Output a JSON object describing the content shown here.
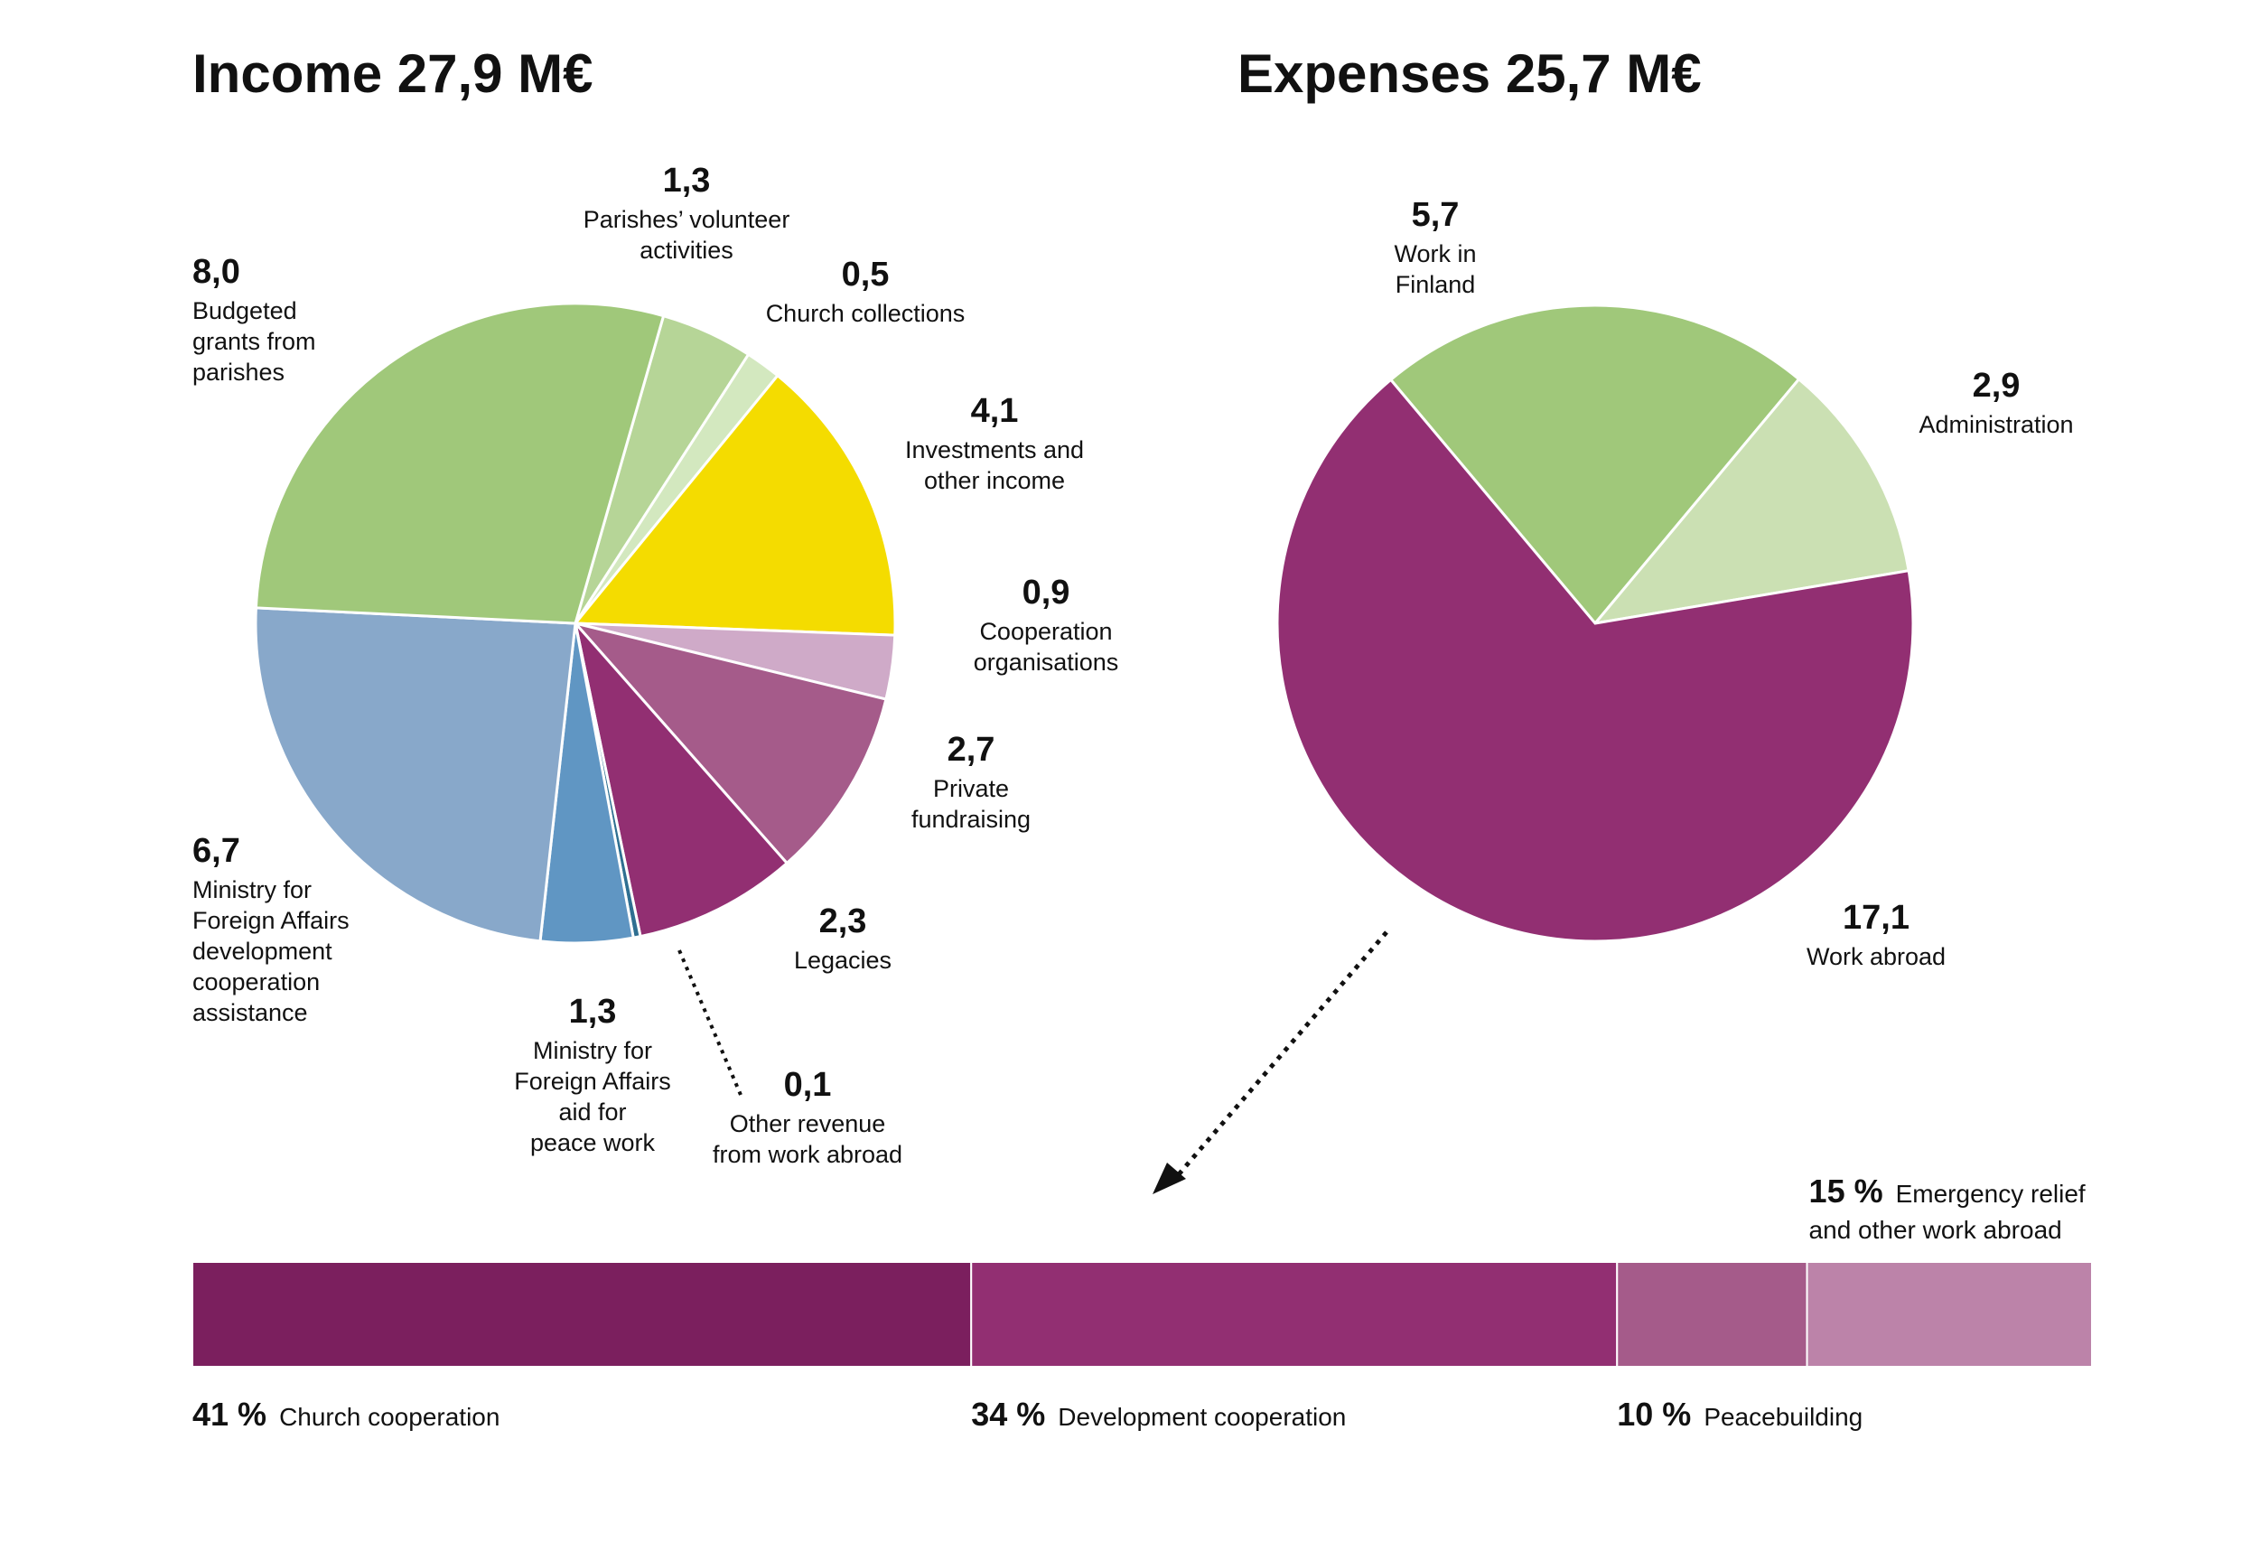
{
  "chart_data": [
    {
      "type": "pie",
      "title": "Income 27,9 M€",
      "start_angle_deg": -74,
      "slices": [
        {
          "value": "1,3",
          "label": [
            "Parishes’ volunteer",
            "activities"
          ],
          "v": 1.3,
          "color": "#b6d597"
        },
        {
          "value": "0,5",
          "label": [
            "Church collections"
          ],
          "v": 0.5,
          "color": "#d3e8bf"
        },
        {
          "value": "4,1",
          "label": [
            "Investments and",
            "other income"
          ],
          "v": 4.1,
          "color": "#f4dc00"
        },
        {
          "value": "0,9",
          "label": [
            "Cooperation",
            "organisations"
          ],
          "v": 0.9,
          "color": "#cfaac8"
        },
        {
          "value": "2,7",
          "label": [
            "Private",
            "fundraising"
          ],
          "v": 2.7,
          "color": "#a55b8a"
        },
        {
          "value": "2,3",
          "label": [
            "Legacies"
          ],
          "v": 2.3,
          "color": "#922f72"
        },
        {
          "value": "0,1",
          "label": [
            "Other revenue",
            "from work abroad"
          ],
          "v": 0.1,
          "color": "#2f6f91"
        },
        {
          "value": "1,3",
          "label": [
            "Ministry for",
            "Foreign Affairs",
            "aid for",
            "peace work"
          ],
          "v": 1.3,
          "color": "#6096c3"
        },
        {
          "value": "6,7",
          "label": [
            "Ministry for",
            "Foreign Affairs",
            "development",
            "cooperation",
            "assistance"
          ],
          "v": 6.7,
          "color": "#88a8ca"
        },
        {
          "value": "8,0",
          "label": [
            "Budgeted",
            "grants from",
            "parishes"
          ],
          "v": 8.0,
          "color": "#a0c87a"
        }
      ]
    },
    {
      "type": "pie",
      "title": "Expenses 25,7 M€",
      "start_angle_deg": -130,
      "slices": [
        {
          "value": "5,7",
          "label": [
            "Work in",
            "Finland"
          ],
          "v": 5.7,
          "color": "#a0c87a"
        },
        {
          "value": "2,9",
          "label": [
            "Administration"
          ],
          "v": 2.9,
          "color": "#cbe0b3"
        },
        {
          "value": "17,1",
          "label": [
            "Work abroad"
          ],
          "v": 17.1,
          "color": "#922f72"
        }
      ]
    },
    {
      "type": "bar",
      "orientation": "stacked-horizontal",
      "series": [
        {
          "pct": "41 %",
          "v": 41,
          "label": "Church cooperation",
          "color": "#7b1f5e"
        },
        {
          "pct": "34 %",
          "v": 34,
          "label": "Development cooperation",
          "color": "#922f72"
        },
        {
          "pct": "10 %",
          "v": 10,
          "label": "Peacebuilding",
          "color": "#a55b8a"
        },
        {
          "pct": "15 %",
          "v": 15,
          "label": "Emergency relief",
          "label2": "and other work abroad",
          "color": "#bc83a9"
        }
      ]
    }
  ]
}
